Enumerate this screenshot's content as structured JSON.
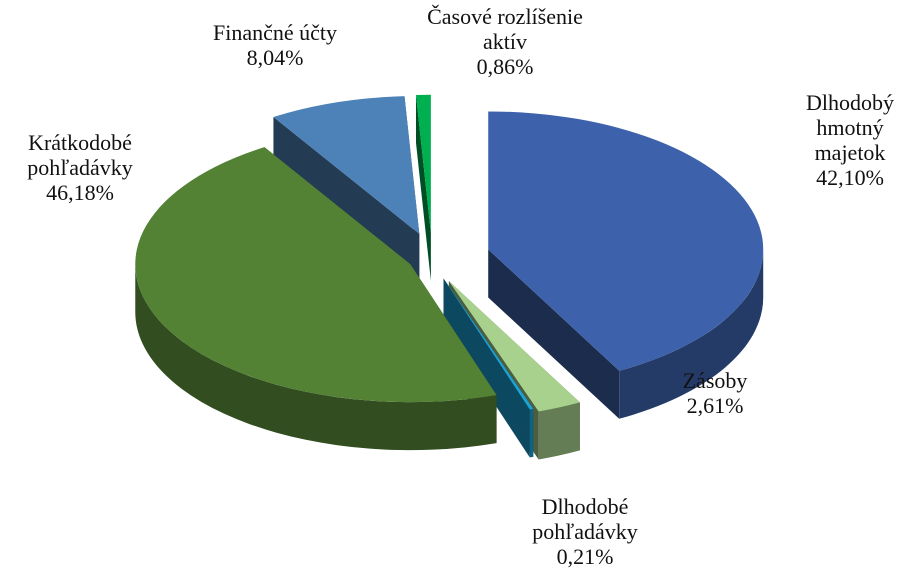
{
  "chart_data": {
    "type": "pie",
    "categories": [
      "Dlhodobý hmotný majetok",
      "Zásoby",
      "Dlhodobé pohľadávky",
      "Krátkodobé pohľadávky",
      "Finančné účty",
      "Časové rozlíšenie aktív"
    ],
    "values": [
      42.1,
      2.61,
      0.21,
      46.18,
      8.04,
      0.86
    ],
    "value_labels": [
      "42,10%",
      "2,61%",
      "0,21%",
      "46,18%",
      "8,04%",
      "0,86%"
    ],
    "colors": [
      "#3d62ab",
      "#a9d18e",
      "#1ba3d6",
      "#548235",
      "#4d82b8",
      "#00b050"
    ]
  }
}
